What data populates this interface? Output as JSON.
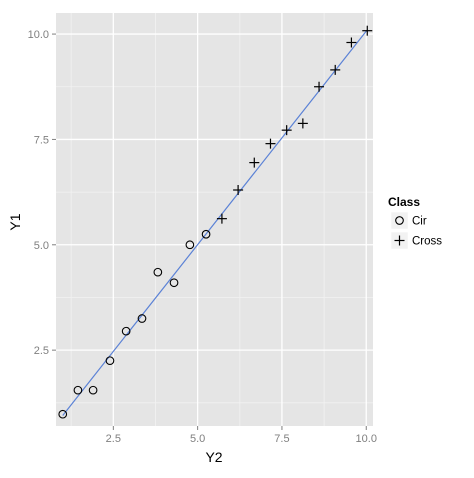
{
  "chart_data": {
    "type": "scatter",
    "xlabel": "Y2",
    "ylabel": "Y1",
    "xlim": [
      0.8,
      10.2
    ],
    "ylim": [
      0.7,
      10.5
    ],
    "x_ticks": [
      2.5,
      5.0,
      7.5,
      10.0
    ],
    "x_tick_labels": [
      "2.5",
      "5.0",
      "7.5",
      "10.0"
    ],
    "y_ticks": [
      2.5,
      5.0,
      7.5,
      10.0
    ],
    "y_tick_labels": [
      "2.5",
      "5.0",
      "7.5",
      "10.0"
    ],
    "grid": true,
    "legend_position": "right",
    "legend": {
      "title": "Class",
      "entries": [
        {
          "label": "Cir",
          "shape": "circle"
        },
        {
          "label": "Cross",
          "shape": "cross"
        }
      ]
    },
    "series": [
      {
        "name": "Cir",
        "shape": "circle",
        "points": [
          {
            "x": 1.0,
            "y": 0.98
          },
          {
            "x": 1.45,
            "y": 1.55
          },
          {
            "x": 1.9,
            "y": 1.55
          },
          {
            "x": 2.4,
            "y": 2.25
          },
          {
            "x": 2.88,
            "y": 2.95
          },
          {
            "x": 3.35,
            "y": 3.25
          },
          {
            "x": 3.82,
            "y": 4.35
          },
          {
            "x": 4.3,
            "y": 4.1
          },
          {
            "x": 4.77,
            "y": 5.0
          },
          {
            "x": 5.25,
            "y": 5.25
          }
        ]
      },
      {
        "name": "Cross",
        "shape": "cross",
        "points": [
          {
            "x": 5.72,
            "y": 5.62
          },
          {
            "x": 6.2,
            "y": 6.3
          },
          {
            "x": 6.68,
            "y": 6.95
          },
          {
            "x": 7.16,
            "y": 7.4
          },
          {
            "x": 7.64,
            "y": 7.72
          },
          {
            "x": 8.12,
            "y": 7.88
          },
          {
            "x": 8.6,
            "y": 8.75
          },
          {
            "x": 9.08,
            "y": 9.15
          },
          {
            "x": 9.56,
            "y": 9.8
          },
          {
            "x": 10.03,
            "y": 10.08
          }
        ]
      }
    ],
    "fit_line": {
      "x": [
        1.0,
        10.03
      ],
      "y": [
        0.95,
        10.1
      ]
    },
    "colors": {
      "panel_background": "#e5e5e5",
      "grid_major": "#ffffff",
      "grid_minor": "#f2f2f2",
      "fit_line": "#5b82d6",
      "marker": "#000000",
      "tick_label": "#7f7f7f"
    }
  }
}
